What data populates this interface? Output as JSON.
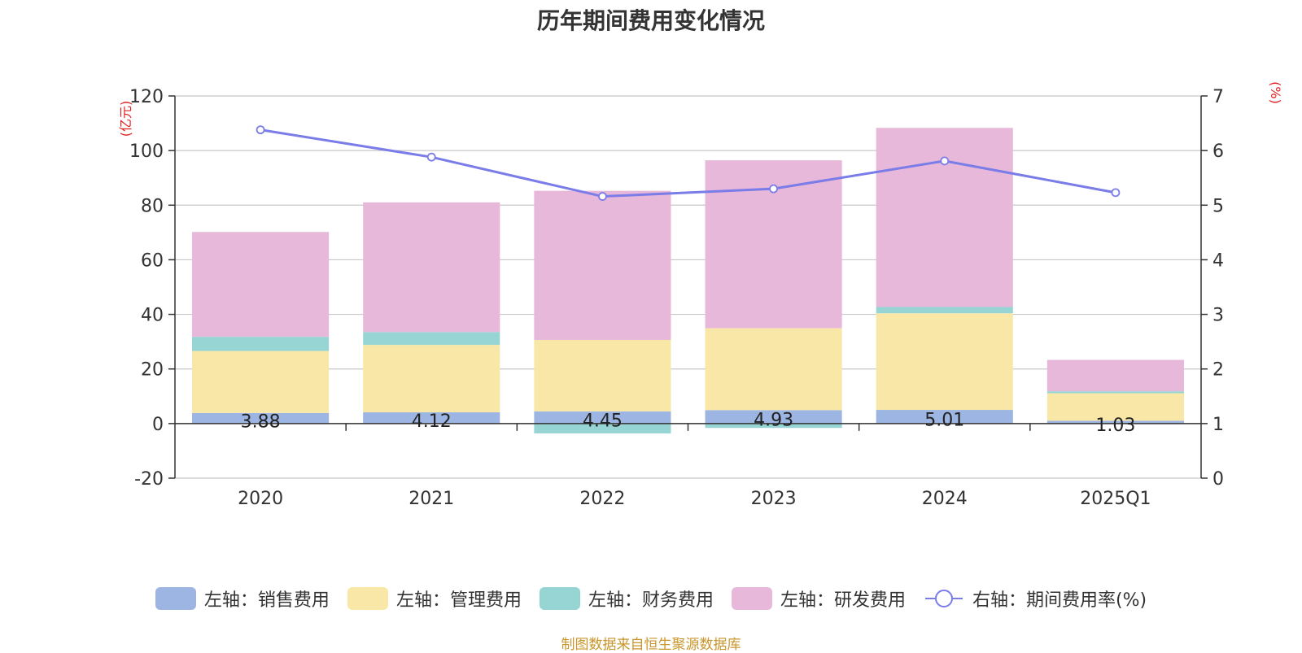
{
  "chart_data": {
    "type": "bar",
    "title": "历年期间费用变化情况",
    "categories": [
      "2020",
      "2021",
      "2022",
      "2023",
      "2024",
      "2025Q1"
    ],
    "left_axis": {
      "unit": "(亿元)",
      "ylim": [
        -20,
        120
      ],
      "ticks": [
        "-20",
        "0",
        "20",
        "40",
        "60",
        "80",
        "100",
        "120"
      ]
    },
    "right_axis": {
      "unit": "(%)",
      "ylim": [
        0,
        7
      ],
      "ticks": [
        "0",
        "1",
        "2",
        "3",
        "4",
        "5",
        "6",
        "7"
      ]
    },
    "grid": true,
    "stacked": true,
    "series": [
      {
        "name": "左轴：销售费用",
        "color": "#9db5e2",
        "values": [
          3.88,
          4.12,
          4.45,
          4.93,
          5.01,
          1.03
        ],
        "labels": [
          "3.88",
          "4.12",
          "4.45",
          "4.93",
          "5.01",
          "1.03"
        ]
      },
      {
        "name": "左轴：管理费用",
        "color": "#f8e7a7",
        "values": [
          22.7,
          24.7,
          26.2,
          30.0,
          35.4,
          10.1
        ]
      },
      {
        "name": "左轴：财务费用",
        "color": "#97d5d4",
        "values": [
          5.2,
          4.7,
          -3.6,
          -1.6,
          2.3,
          0.7
        ]
      },
      {
        "name": "左轴：研发费用",
        "color": "#e7b8d9",
        "values": [
          38.4,
          47.5,
          54.6,
          61.5,
          65.6,
          11.5
        ]
      }
    ],
    "line_series": {
      "name": "右轴：期间费用率(%)",
      "color": "#7a7ce8",
      "axis": "right",
      "values": [
        6.38,
        5.88,
        5.16,
        5.3,
        5.81,
        5.23
      ]
    },
    "legend_position": "bottom"
  },
  "footer": "制图数据来自恒生聚源数据库"
}
